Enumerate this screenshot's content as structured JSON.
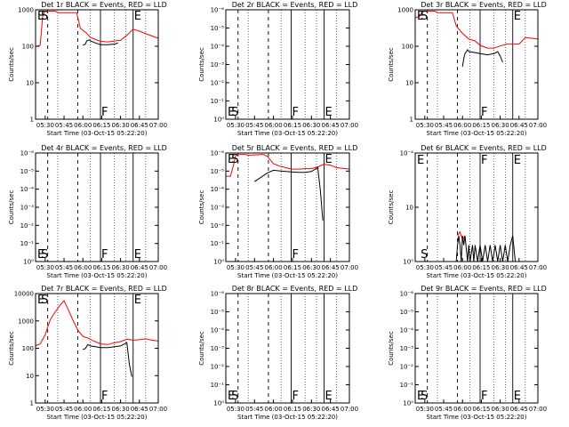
{
  "figure": {
    "start_time_label": "Start Time (03-Oct-15 05:22:20)",
    "ylabel": "Counts/sec",
    "colors": {
      "events": "#000000",
      "lld": "#ff0000",
      "axes": "#000000"
    }
  },
  "chart_data": [
    {
      "type": "line",
      "title": "Det 1r BLACK = Events, RED = LLD",
      "xlabel": "Start Time (03-Oct-15 05:22:20)",
      "ylabel": "Counts/sec",
      "x_ticks": [
        "05:30",
        "05:45",
        "06:00",
        "06:15",
        "06:30",
        "06:45",
        "07:00"
      ],
      "xlim": [
        "05:22:20",
        "07:00"
      ],
      "y_scale": "log",
      "y_ticks": [
        "1",
        "10",
        "100",
        "1000"
      ],
      "ylim": [
        1,
        1200
      ],
      "markers": [
        {
          "label": "E",
          "time": "05:23"
        },
        {
          "label": "S",
          "time": "05:26"
        },
        {
          "label": "F",
          "time": "06:14"
        },
        {
          "label": "E",
          "time": "06:40"
        }
      ],
      "series": [
        {
          "color": "#ff0000",
          "x": [
            "05:22",
            "05:26",
            "05:28",
            "05:30",
            "05:32",
            "05:38",
            "05:40",
            "05:55",
            "05:58",
            "06:03",
            "06:06",
            "06:10",
            "06:14",
            "06:20",
            "06:25",
            "06:30",
            "06:35",
            "06:40",
            "06:45",
            "06:52",
            "07:00"
          ],
          "y": [
            110,
            120,
            800,
            1100,
            1100,
            1100,
            1000,
            1000,
            360,
            260,
            200,
            175,
            155,
            150,
            160,
            165,
            230,
            340,
            300,
            240,
            190
          ]
        },
        {
          "color": "#000000",
          "x": [
            "06:00",
            "06:02",
            "06:03",
            "06:05",
            "06:06",
            "06:10",
            "06:14",
            "06:20",
            "06:25",
            "06:28"
          ],
          "y": [
            120,
            130,
            160,
            170,
            160,
            140,
            125,
            125,
            130,
            140
          ]
        }
      ]
    },
    {
      "type": "line",
      "title": "Det 2r BLACK = Events, RED = LLD",
      "xlabel": "Start Time (03-Oct-15 05:22:20)",
      "ylabel": "Counts/sec",
      "x_ticks": [
        "05:30",
        "05:45",
        "06:00",
        "06:15",
        "06:30",
        "06:45",
        "07:00"
      ],
      "xlim": [
        "05:22:20",
        "07:00"
      ],
      "y_scale": "log",
      "y_ticks": [
        "10⁰",
        "10⁻¹",
        "10⁻²",
        "10⁻³",
        "10⁻⁴",
        "10⁻⁵",
        "10⁻⁶"
      ],
      "ylim": [
        1,
        1200000.0
      ],
      "markers": [
        {
          "label": "E",
          "time": "05:23"
        },
        {
          "label": "S",
          "time": "05:26"
        },
        {
          "label": "F",
          "time": "06:14"
        },
        {
          "label": "E",
          "time": "06:40"
        }
      ],
      "series": []
    },
    {
      "type": "line",
      "title": "Det 3r BLACK = Events, RED = LLD",
      "xlabel": "Start Time (03-Oct-15 05:22:20)",
      "ylabel": "Counts/sec",
      "x_ticks": [
        "05:30",
        "05:45",
        "06:00",
        "06:15",
        "06:30",
        "06:45",
        "07:00"
      ],
      "xlim": [
        "05:22:20",
        "07:00"
      ],
      "y_scale": "log",
      "y_ticks": [
        "1",
        "10",
        "100",
        "1000"
      ],
      "ylim": [
        1,
        1200
      ],
      "markers": [
        {
          "label": "E",
          "time": "05:23"
        },
        {
          "label": "S",
          "time": "05:26"
        },
        {
          "label": "F",
          "time": "06:14"
        },
        {
          "label": "E",
          "time": "06:40"
        }
      ],
      "series": [
        {
          "color": "#ff0000",
          "x": [
            "05:22",
            "05:26",
            "05:28",
            "05:30",
            "05:32",
            "05:38",
            "05:40",
            "05:52",
            "05:55",
            "06:00",
            "06:05",
            "06:10",
            "06:14",
            "06:20",
            "06:25",
            "06:30",
            "06:35",
            "06:45",
            "06:50",
            "07:00"
          ],
          "y": [
            700,
            800,
            1100,
            1100,
            1100,
            1100,
            1000,
            1000,
            420,
            260,
            180,
            160,
            120,
            100,
            100,
            115,
            130,
            130,
            200,
            180
          ]
        },
        {
          "color": "#000000",
          "x": [
            "06:00",
            "06:01",
            "06:02",
            "06:04",
            "06:05",
            "06:10",
            "06:14",
            "06:20",
            "06:25",
            "06:28",
            "06:30",
            "06:32"
          ],
          "y": [
            30,
            50,
            70,
            90,
            80,
            75,
            70,
            65,
            70,
            80,
            60,
            40
          ]
        }
      ]
    },
    {
      "type": "line",
      "title": "Det 4r BLACK = Events, RED = LLD",
      "xlabel": "Start Time (03-Oct-15 05:22:20)",
      "ylabel": "Counts/sec",
      "x_ticks": [
        "05:30",
        "05:45",
        "06:00",
        "06:15",
        "06:30",
        "06:45",
        "07:00"
      ],
      "xlim": [
        "05:22:20",
        "07:00"
      ],
      "y_scale": "log",
      "y_ticks": [
        "10⁰",
        "10⁻¹",
        "10⁻²",
        "10⁻³",
        "10⁻⁴",
        "10⁻⁵",
        "10⁻⁶"
      ],
      "ylim": [
        1,
        1200000.0
      ],
      "markers": [
        {
          "label": "E",
          "time": "05:23"
        },
        {
          "label": "S",
          "time": "05:26"
        },
        {
          "label": "F",
          "time": "06:14"
        },
        {
          "label": "E",
          "time": "06:40"
        }
      ],
      "series": []
    },
    {
      "type": "line",
      "title": "Det 5r BLACK = Events, RED = LLD",
      "xlabel": "Start Time (03-Oct-15 05:22:20)",
      "ylabel": "Counts/sec",
      "x_ticks": [
        "05:30",
        "05:45",
        "06:00",
        "06:15",
        "06:30",
        "06:45",
        "07:00"
      ],
      "xlim": [
        "05:22:20",
        "07:00"
      ],
      "y_scale": "log",
      "y_ticks": [
        "10⁰",
        "10⁻¹",
        "10⁻²",
        "10⁻³",
        "10⁻⁴",
        "10⁻⁵",
        "10⁻⁶"
      ],
      "ylim": [
        1,
        1200000.0
      ],
      "markers": [
        {
          "label": "E",
          "time": "05:23"
        },
        {
          "label": "S",
          "time": "05:26"
        },
        {
          "label": "F",
          "time": "06:14"
        },
        {
          "label": "E",
          "time": "06:40"
        }
      ],
      "series": [
        {
          "color": "#ff0000",
          "x": [
            "05:22",
            "05:26",
            "05:28",
            "05:30",
            "05:32",
            "05:38",
            "05:40",
            "05:52",
            "05:55",
            "06:00",
            "06:05",
            "06:10",
            "06:14",
            "06:20",
            "06:25",
            "06:30",
            "06:35",
            "06:40",
            "06:45",
            "06:50",
            "07:00"
          ],
          "y": [
            60000.0,
            60000.0,
            200000.0,
            800000.0,
            1000000.0,
            1000000.0,
            900000.0,
            1000000.0,
            800000.0,
            300000.0,
            220000.0,
            180000.0,
            150000.0,
            150000.0,
            160000.0,
            160000.0,
            200000.0,
            280000.0,
            250000.0,
            180000.0,
            150000.0
          ]
        },
        {
          "color": "#000000",
          "x": [
            "05:45",
            "05:55",
            "06:00",
            "06:05",
            "06:10",
            "06:14",
            "06:20",
            "06:25",
            "06:30",
            "06:35",
            "06:37",
            "06:39"
          ],
          "y": [
            30000.0,
            90000.0,
            130000.0,
            120000.0,
            110000.0,
            105000.0,
            100000.0,
            100000.0,
            110000.0,
            180000.0,
            10000.0,
            200
          ]
        }
      ]
    },
    {
      "type": "line",
      "title": "Det 6r BLACK = Events, RED = LLD",
      "xlabel": "Start Time (03-Oct-15 05:22:20)",
      "ylabel": "Counts/sec",
      "x_ticks": [
        "05:30",
        "05:45",
        "06:00",
        "06:15",
        "06:30",
        "06:45",
        "07:00"
      ],
      "xlim": [
        "05:22:20",
        "07:00"
      ],
      "y_scale": "log",
      "y_ticks": [
        "10⁰",
        "10",
        "10⁻⁴"
      ],
      "ylim": [
        1,
        100
      ],
      "markers": [
        {
          "label": "E",
          "time": "05:23"
        },
        {
          "label": "S",
          "time": "05:26"
        },
        {
          "label": "F",
          "time": "06:14"
        },
        {
          "label": "E",
          "time": "06:40"
        }
      ],
      "series": [
        {
          "color": "#ff0000",
          "x": [
            "05:56",
            "05:58",
            "06:00",
            "06:02"
          ],
          "y": [
            3,
            3.5,
            2.5,
            3
          ]
        },
        {
          "color": "#000000",
          "x": [
            "05:55",
            "05:56",
            "05:57",
            "05:58",
            "05:59",
            "06:00",
            "06:01",
            "06:02",
            "06:04",
            "06:05",
            "06:06",
            "06:08",
            "06:09",
            "06:10",
            "06:12",
            "06:14",
            "06:16",
            "06:18",
            "06:20",
            "06:22",
            "06:24",
            "06:26",
            "06:28",
            "06:30",
            "06:32",
            "06:34",
            "06:36",
            "06:38",
            "06:40",
            "06:42"
          ],
          "y": [
            1,
            2,
            3,
            2,
            1,
            3,
            2,
            3,
            1,
            2,
            1,
            2,
            1,
            2,
            1,
            2,
            1,
            2,
            1,
            2,
            1,
            2,
            1,
            2,
            1,
            2,
            1,
            2,
            3,
            1
          ]
        }
      ]
    },
    {
      "type": "line",
      "title": "Det 7r BLACK = Events, RED = LLD",
      "xlabel": "Start Time (03-Oct-15 05:22:20)",
      "ylabel": "Counts/sec",
      "x_ticks": [
        "05:30",
        "05:45",
        "06:00",
        "06:15",
        "06:30",
        "06:45",
        "07:00"
      ],
      "xlim": [
        "05:22:20",
        "07:00"
      ],
      "y_scale": "log",
      "y_ticks": [
        "1",
        "10",
        "100",
        "1000",
        "10000"
      ],
      "ylim": [
        1,
        15000
      ],
      "markers": [
        {
          "label": "E",
          "time": "05:23"
        },
        {
          "label": "S",
          "time": "05:26"
        },
        {
          "label": "F",
          "time": "06:14"
        },
        {
          "label": "E",
          "time": "06:40"
        }
      ],
      "series": [
        {
          "color": "#ff0000",
          "x": [
            "05:22",
            "05:26",
            "05:30",
            "05:34",
            "05:38",
            "05:42",
            "05:45",
            "05:48",
            "05:52",
            "05:56",
            "06:00",
            "06:04",
            "06:08",
            "06:14",
            "06:20",
            "06:25",
            "06:30",
            "06:35",
            "06:40",
            "06:45",
            "06:50",
            "06:55",
            "07:00"
          ],
          "y": [
            150,
            180,
            400,
            1500,
            3000,
            5500,
            8000,
            4000,
            1500,
            600,
            350,
            300,
            240,
            180,
            170,
            200,
            220,
            270,
            250,
            260,
            280,
            250,
            230
          ]
        },
        {
          "color": "#000000",
          "x": [
            "06:00",
            "06:02",
            "06:04",
            "06:06",
            "06:10",
            "06:14",
            "06:20",
            "06:25",
            "06:30",
            "06:35",
            "06:37",
            "06:39"
          ],
          "y": [
            110,
            120,
            170,
            150,
            140,
            130,
            130,
            140,
            150,
            200,
            30,
            10
          ]
        }
      ]
    },
    {
      "type": "line",
      "title": "Det 8r BLACK = Events, RED = LLD",
      "xlabel": "Start Time (03-Oct-15 05:22:20)",
      "ylabel": "Counts/sec",
      "x_ticks": [
        "05:30",
        "05:45",
        "06:00",
        "06:15",
        "06:30",
        "06:45",
        "07:00"
      ],
      "xlim": [
        "05:22:20",
        "07:00"
      ],
      "y_scale": "log",
      "y_ticks": [
        "10⁰",
        "10⁻¹",
        "10⁻²",
        "10⁻³",
        "10⁻⁴",
        "10⁻⁵",
        "10⁻⁶"
      ],
      "ylim": [
        1,
        1200000.0
      ],
      "markers": [
        {
          "label": "E",
          "time": "05:23"
        },
        {
          "label": "S",
          "time": "05:26"
        },
        {
          "label": "F",
          "time": "06:14"
        },
        {
          "label": "E",
          "time": "06:40"
        }
      ],
      "series": []
    },
    {
      "type": "line",
      "title": "Det 9r BLACK = Events, RED = LLD",
      "xlabel": "Start Time (03-Oct-15 05:22:20)",
      "ylabel": "Counts/sec",
      "x_ticks": [
        "05:30",
        "05:45",
        "06:00",
        "06:15",
        "06:30",
        "06:45",
        "07:00"
      ],
      "xlim": [
        "05:22:20",
        "07:00"
      ],
      "y_scale": "log",
      "y_ticks": [
        "10⁰",
        "10⁻¹",
        "10⁻²",
        "10⁻³",
        "10⁻⁴",
        "10⁻⁵",
        "10⁻⁶"
      ],
      "ylim": [
        1,
        1200000.0
      ],
      "markers": [
        {
          "label": "E",
          "time": "05:23"
        },
        {
          "label": "S",
          "time": "05:26"
        },
        {
          "label": "F",
          "time": "06:14"
        },
        {
          "label": "E",
          "time": "06:40"
        }
      ],
      "series": []
    }
  ]
}
